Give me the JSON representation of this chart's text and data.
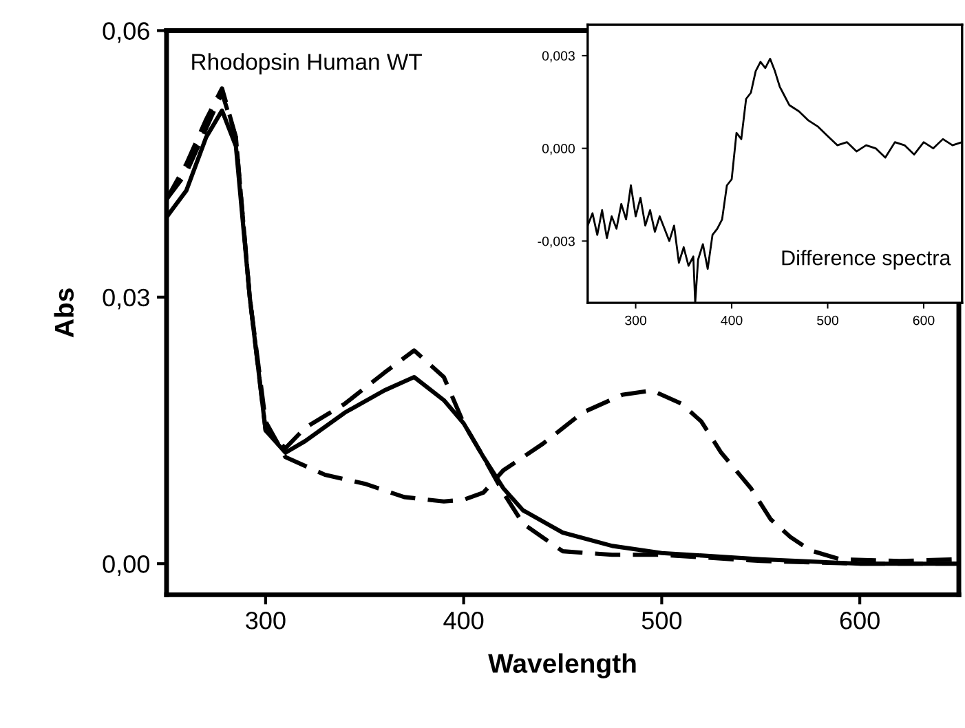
{
  "chart_data": [
    {
      "type": "line",
      "xlabel": "Wavelength",
      "ylabel": "Abs",
      "annotations": [
        "Rhodopsin Human WT"
      ],
      "xlim": [
        250,
        650
      ],
      "xticks": [
        300,
        400,
        500,
        600
      ],
      "ylim": [
        -0.0035,
        0.06
      ],
      "yticks": [
        {
          "value": 0,
          "label": "0,00"
        },
        {
          "value": 0.03,
          "label": "0,03"
        },
        {
          "value": 0.06,
          "label": "0,06"
        }
      ],
      "grid": false,
      "legend": false,
      "series": [
        {
          "color": "#000000",
          "line_style": "dashed",
          "x": [
            250,
            260,
            270,
            278,
            285,
            292,
            300,
            310,
            330,
            350,
            370,
            390,
            400,
            410,
            420,
            440,
            460,
            480,
            495,
            510,
            520,
            530,
            545,
            555,
            565,
            575,
            590,
            620,
            650
          ],
          "values": [
            0.041,
            0.044,
            0.049,
            0.053,
            0.048,
            0.03,
            0.016,
            0.012,
            0.01,
            0.009,
            0.0075,
            0.007,
            0.0072,
            0.008,
            0.0105,
            0.0135,
            0.017,
            0.019,
            0.0195,
            0.018,
            0.016,
            0.0125,
            0.0085,
            0.005,
            0.003,
            0.0015,
            0.0005,
            0.0003,
            0.0005
          ]
        },
        {
          "color": "#000000",
          "line_style": "solid",
          "x": [
            250,
            260,
            270,
            278,
            285,
            292,
            300,
            310,
            320,
            340,
            360,
            375,
            390,
            400,
            410,
            420,
            430,
            450,
            475,
            500,
            550,
            600,
            650
          ],
          "values": [
            0.039,
            0.042,
            0.048,
            0.051,
            0.047,
            0.03,
            0.015,
            0.0125,
            0.0138,
            0.017,
            0.0195,
            0.021,
            0.0184,
            0.0158,
            0.012,
            0.0085,
            0.006,
            0.0035,
            0.002,
            0.0012,
            0.0005,
            0.0,
            0.0
          ]
        },
        {
          "color": "#000000",
          "line_style": "dashed",
          "x": [
            250,
            260,
            270,
            278,
            285,
            292,
            300,
            310,
            320,
            340,
            360,
            375,
            390,
            400,
            410,
            420,
            430,
            450,
            475,
            500,
            550,
            600,
            650
          ],
          "values": [
            0.041,
            0.045,
            0.05,
            0.0535,
            0.048,
            0.03,
            0.015,
            0.013,
            0.0153,
            0.018,
            0.0215,
            0.024,
            0.021,
            0.0158,
            0.012,
            0.008,
            0.0045,
            0.0014,
            0.001,
            0.001,
            0.0003,
            0.0,
            0.0
          ]
        }
      ]
    },
    {
      "type": "line",
      "annotations": [
        "Difference spectra"
      ],
      "xlim": [
        250,
        640
      ],
      "xticks": [
        300,
        400,
        500,
        600
      ],
      "ylim": [
        -0.005,
        0.004
      ],
      "yticks": [
        {
          "value": -0.003,
          "label": "-0,003"
        },
        {
          "value": 0,
          "label": "0,000"
        },
        {
          "value": 0.003,
          "label": "0,003"
        }
      ],
      "grid": false,
      "legend": false,
      "series": [
        {
          "color": "#000000",
          "line_style": "solid",
          "x": [
            250,
            255,
            260,
            265,
            270,
            275,
            280,
            285,
            290,
            295,
            300,
            305,
            310,
            315,
            320,
            325,
            330,
            335,
            340,
            345,
            350,
            355,
            360,
            362,
            365,
            370,
            375,
            380,
            385,
            390,
            395,
            400,
            405,
            410,
            415,
            420,
            425,
            430,
            435,
            440,
            445,
            450,
            455,
            460,
            470,
            480,
            490,
            500,
            510,
            520,
            530,
            540,
            550,
            560,
            570,
            580,
            590,
            600,
            610,
            620,
            630,
            640
          ],
          "values": [
            -0.0025,
            -0.0021,
            -0.0028,
            -0.002,
            -0.0029,
            -0.0022,
            -0.0026,
            -0.0018,
            -0.0023,
            -0.0012,
            -0.0022,
            -0.0016,
            -0.0025,
            -0.002,
            -0.0027,
            -0.0022,
            -0.0026,
            -0.003,
            -0.0025,
            -0.0037,
            -0.0032,
            -0.0038,
            -0.0035,
            -0.005,
            -0.0036,
            -0.0031,
            -0.0039,
            -0.0028,
            -0.0026,
            -0.0023,
            -0.0012,
            -0.001,
            0.0005,
            0.0003,
            0.0016,
            0.0018,
            0.0025,
            0.0028,
            0.0026,
            0.0029,
            0.0025,
            0.002,
            0.0017,
            0.0014,
            0.0012,
            0.0009,
            0.0007,
            0.0004,
            0.0001,
            0.0002,
            -0.0001,
            0.0001,
            0.0,
            -0.0003,
            0.0002,
            0.0001,
            -0.0002,
            0.0002,
            0.0,
            0.0003,
            0.0001,
            0.0002
          ]
        }
      ]
    }
  ]
}
